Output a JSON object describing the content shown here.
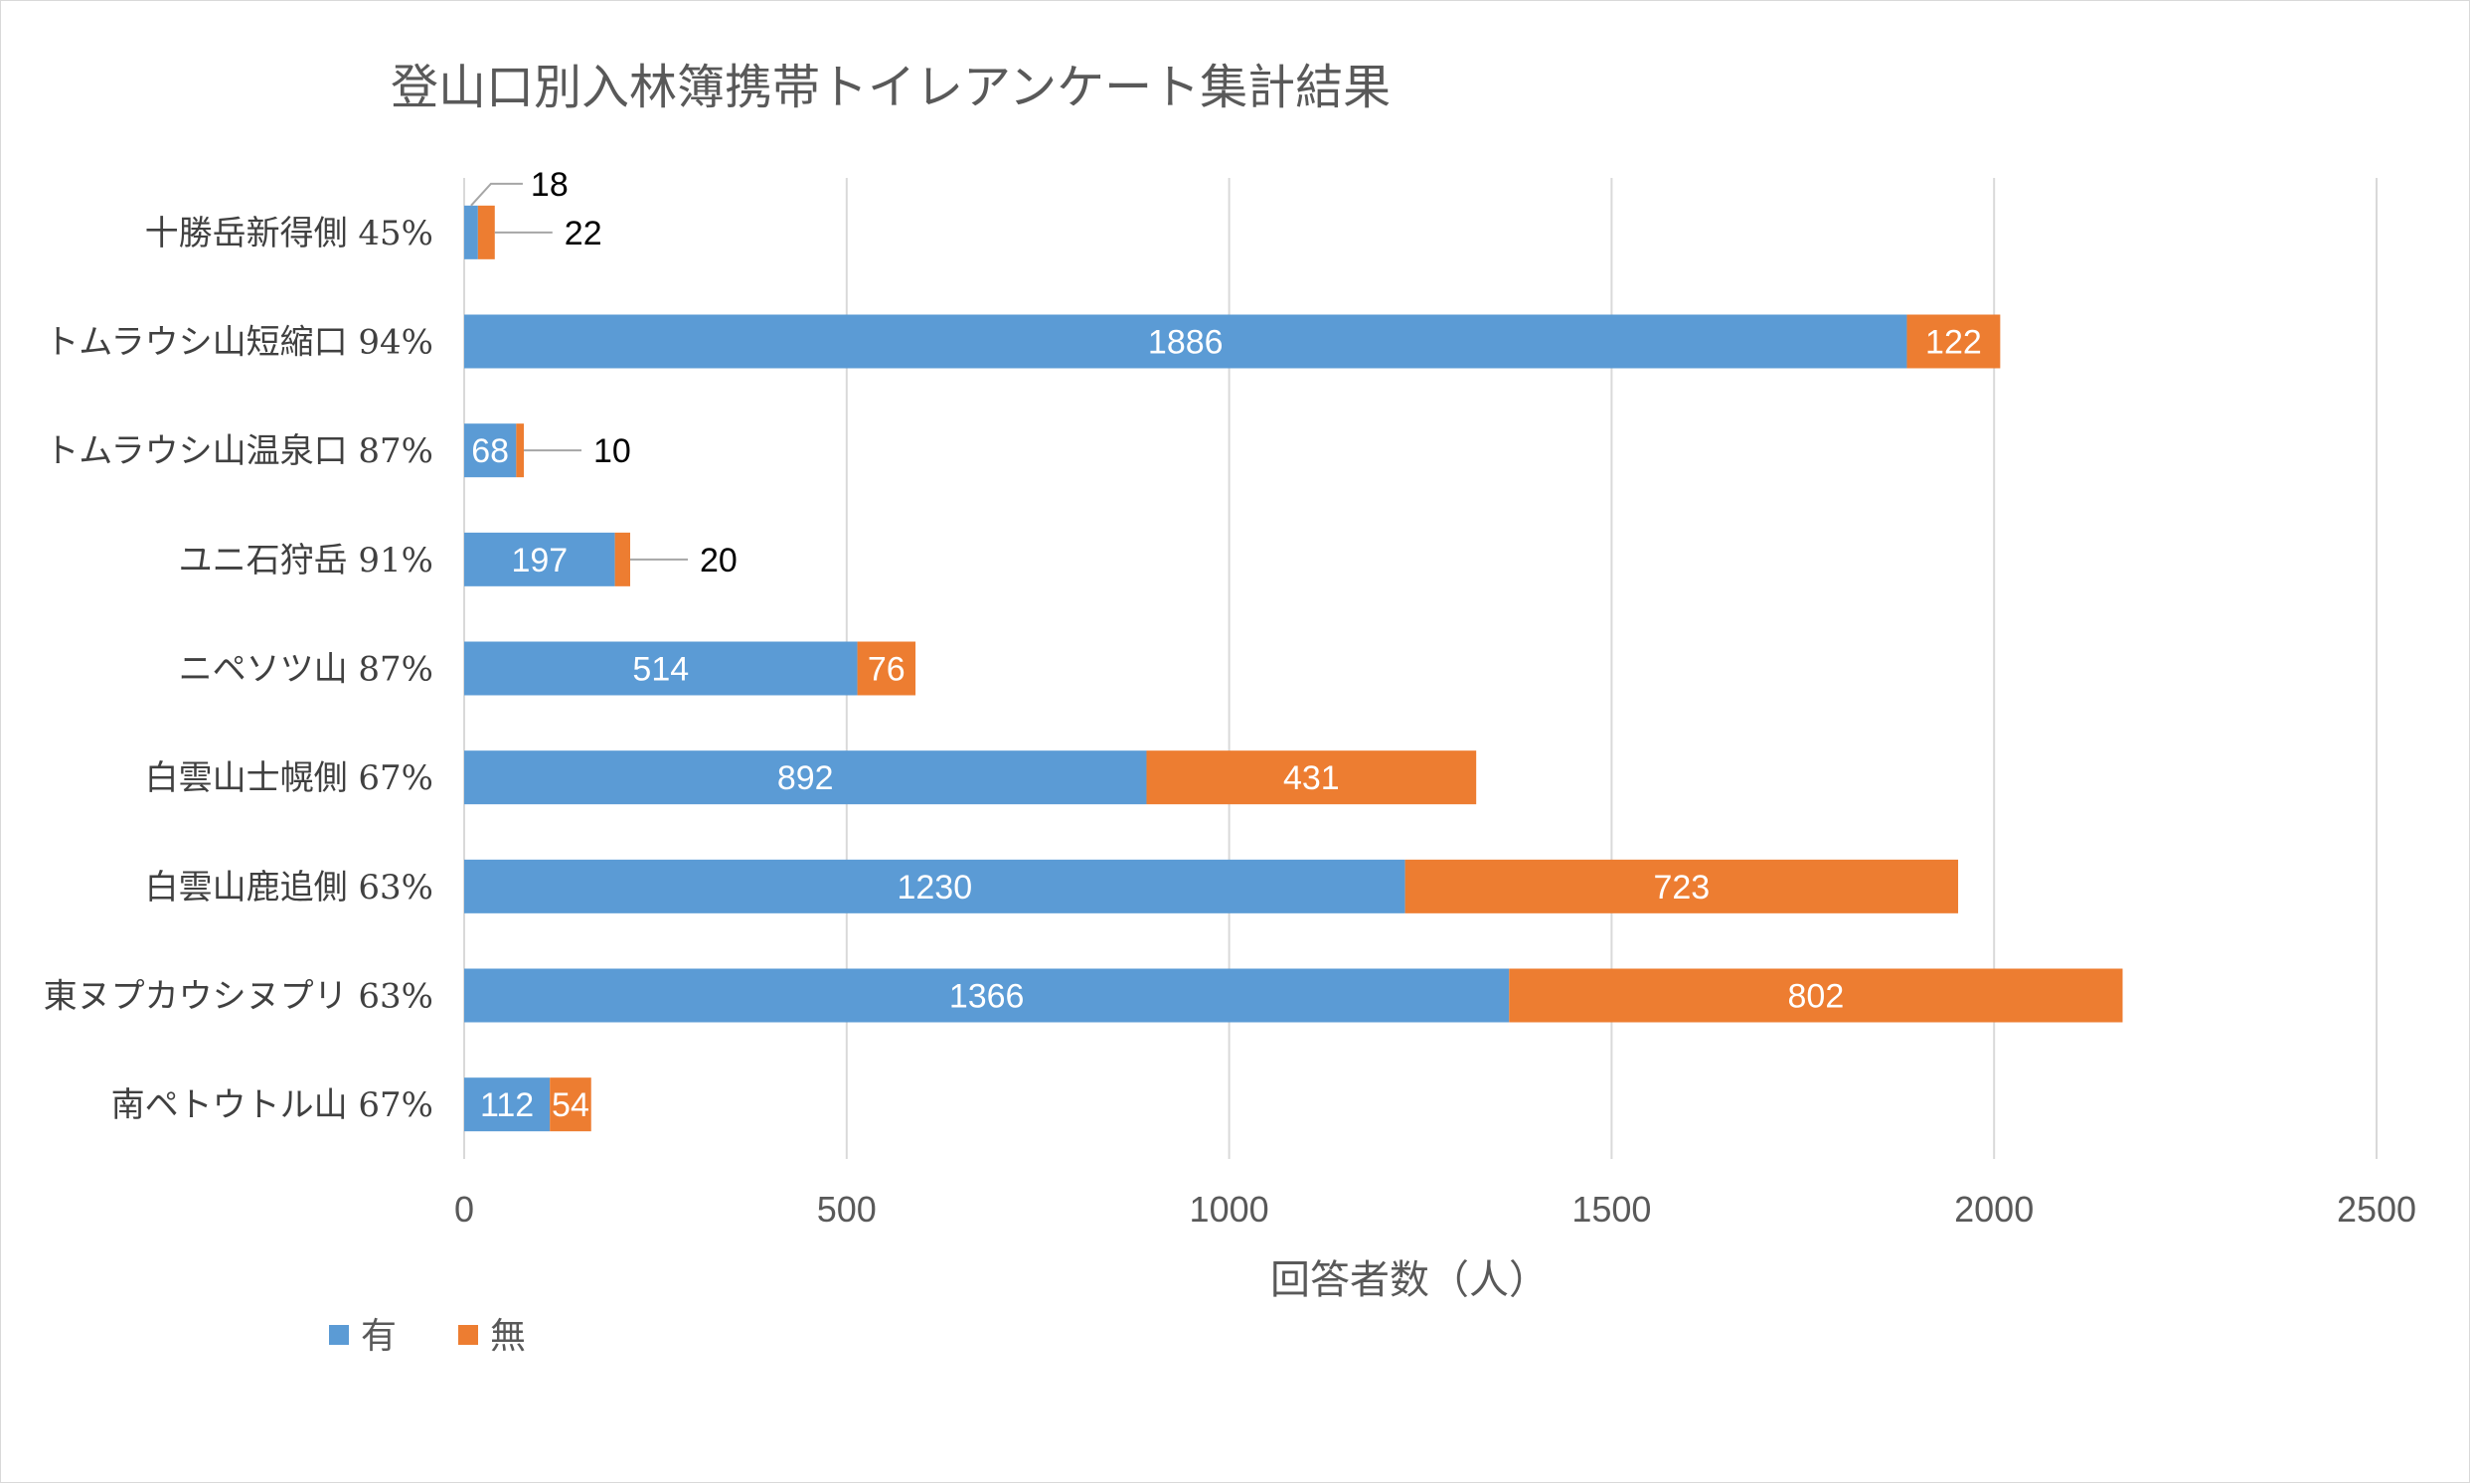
{
  "chart_data": {
    "type": "bar",
    "orientation": "horizontal",
    "stacked": true,
    "title": "登山口別入林簿携帯トイレアンケート集計結果",
    "xlabel": "回答者数（人）",
    "ylabel": "",
    "xlim": [
      0,
      2500
    ],
    "x_ticks": [
      "0",
      "500",
      "1000",
      "1500",
      "2000",
      "2500"
    ],
    "grid": "vertical",
    "legend_position": "bottom-left",
    "categories": [
      "十勝岳新得側 45%",
      "トムラウシ山短縮口 94%",
      "トムラウシ山温泉口 87%",
      "ユニ石狩岳 91%",
      "ニペソツ山 87%",
      "白雲山士幌側 67%",
      "白雲山鹿追側 63%",
      "東ヌプカウシヌプリ 63%",
      "南ペトウトル山 67%"
    ],
    "series": [
      {
        "name": "有",
        "color": "#5b9bd5",
        "values": [
          18,
          1886,
          68,
          197,
          514,
          892,
          1230,
          1366,
          112
        ]
      },
      {
        "name": "無",
        "color": "#ed7d31",
        "values": [
          22,
          122,
          10,
          20,
          76,
          431,
          723,
          802,
          54
        ]
      }
    ]
  }
}
